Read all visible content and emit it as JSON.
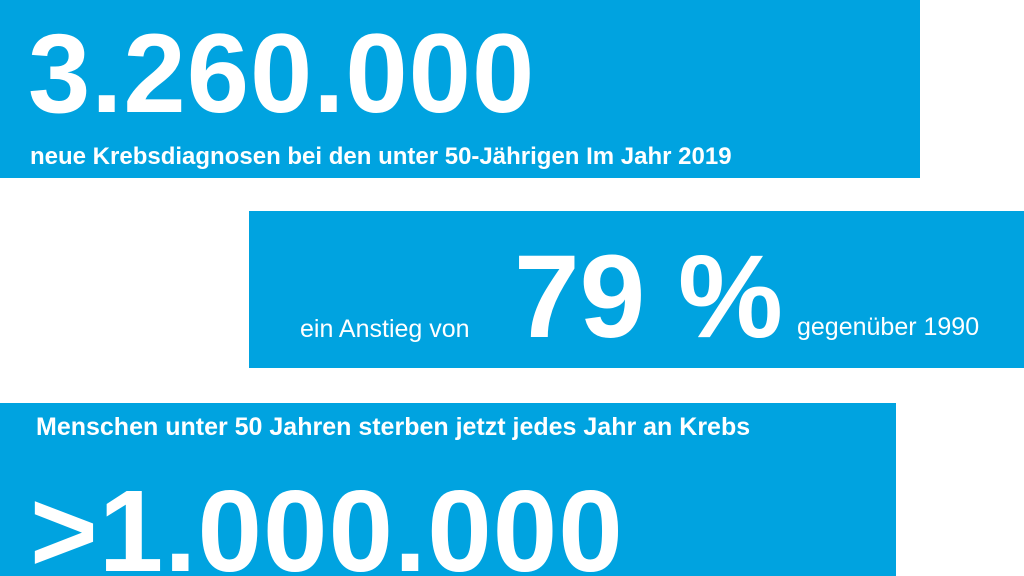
{
  "colors": {
    "background": "#ffffff",
    "panel": "#00a3e0",
    "text": "#ffffff"
  },
  "panel1": {
    "number": "3.260.000",
    "caption": "neue Krebsdiagnosen bei den unter 50-Jährigen Im Jahr 2019"
  },
  "panel2": {
    "prefix": "ein Anstieg von",
    "number": "79 %",
    "suffix": "gegenüber 1990"
  },
  "panel3": {
    "caption": "Menschen unter 50 Jahren sterben jetzt jedes Jahr an Krebs",
    "number": ">1.000.000"
  }
}
